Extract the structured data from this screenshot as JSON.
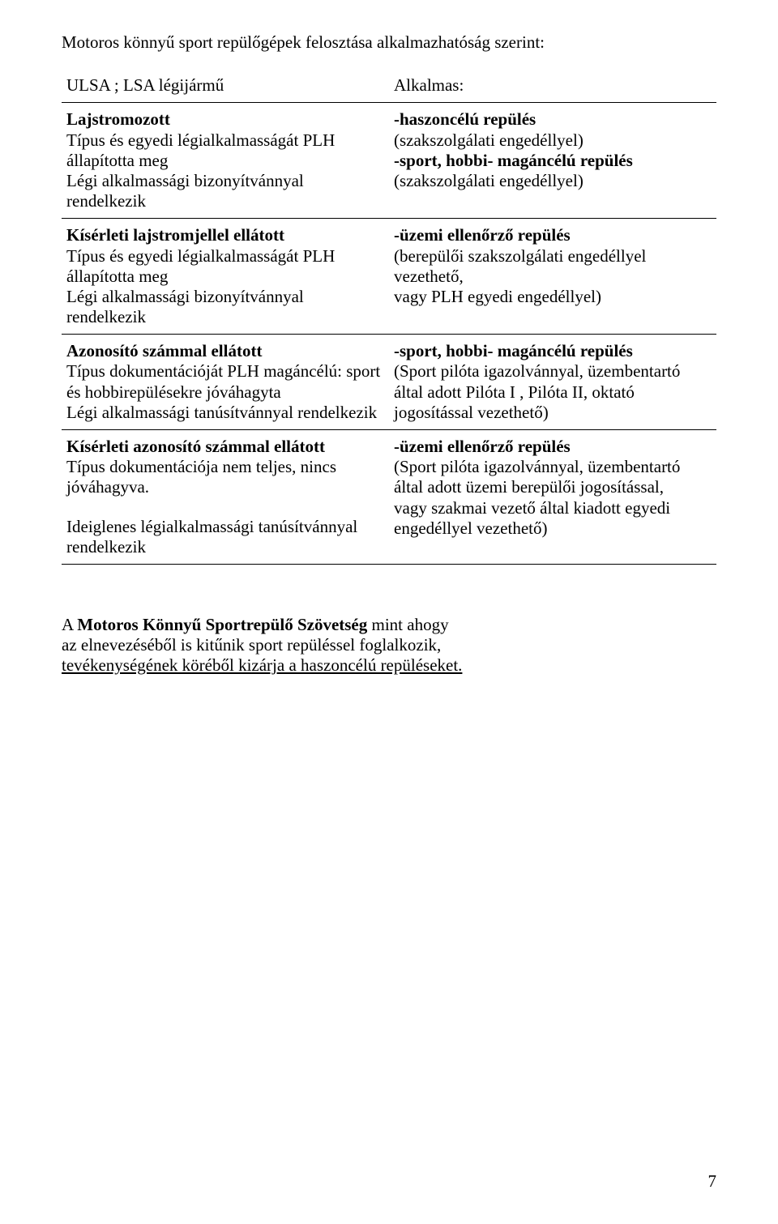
{
  "title": "Motoros könnyű sport repülőgépek felosztása alkalmazhatóság szerint:",
  "tbl": {
    "r0": {
      "left": "ULSA ; LSA  légijármű",
      "right": "Alkalmas:"
    },
    "r1": {
      "left": {
        "h": "Lajstromozott",
        "l1": "Típus és egyedi légialkalmasságát PLH állapította meg",
        "l2": "Légi alkalmassági bizonyítvánnyal rendelkezik"
      },
      "right": {
        "b1": "-haszoncélú repülés",
        "p1": "(szakszolgálati engedéllyel)",
        "b2": "-sport, hobbi- magáncélú repülés",
        "p2": "(szakszolgálati engedéllyel)"
      }
    },
    "r2": {
      "left": {
        "h": "Kísérleti lajstromjellel ellátott",
        "l1": "Típus és egyedi légialkalmasságát PLH állapította meg",
        "l2": "Légi alkalmassági bizonyítvánnyal rendelkezik"
      },
      "right": {
        "b1": "-üzemi ellenőrző repülés",
        "p1": "(berepülői szakszolgálati engedéllyel vezethető,",
        "p2": "vagy PLH egyedi engedéllyel)"
      }
    },
    "r3": {
      "left": {
        "h": "Azonosító számmal ellátott",
        "l1": "Típus dokumentációját PLH magáncélú: sport és hobbirepülésekre jóváhagyta",
        "l2": "Légi alkalmassági tanúsítvánnyal rendelkezik"
      },
      "right": {
        "b1": "-sport, hobbi- magáncélú repülés",
        "p1": "(Sport pilóta igazolvánnyal, üzembentartó által adott Pilóta I , Pilóta II, oktató jogosítással vezethető)"
      }
    },
    "r4": {
      "left": {
        "h": "Kísérleti azonosító számmal ellátott",
        "l1": "Típus dokumentációja nem teljes, nincs jóváhagyva.",
        "blank": " ",
        "l2": "Ideiglenes légialkalmassági tanúsítvánnyal rendelkezik"
      },
      "right": {
        "b1": "-üzemi ellenőrző repülés",
        "p1": "(Sport pilóta igazolvánnyal, üzembentartó által adott üzemi berepülői jogosítással,",
        "p2": "vagy szakmai vezető által kiadott egyedi engedéllyel vezethető)"
      }
    }
  },
  "closing": {
    "l1a": "A ",
    "l1b": "Motoros Könnyű Sportrepülő Szövetség",
    "l1c": " mint ahogy",
    "l2": "az elnevezéséből is kitűnik  sport repüléssel  foglalkozik,",
    "l3": "tevékenységének köréből kizárja a haszoncélú repüléseket."
  },
  "page_number": "7"
}
